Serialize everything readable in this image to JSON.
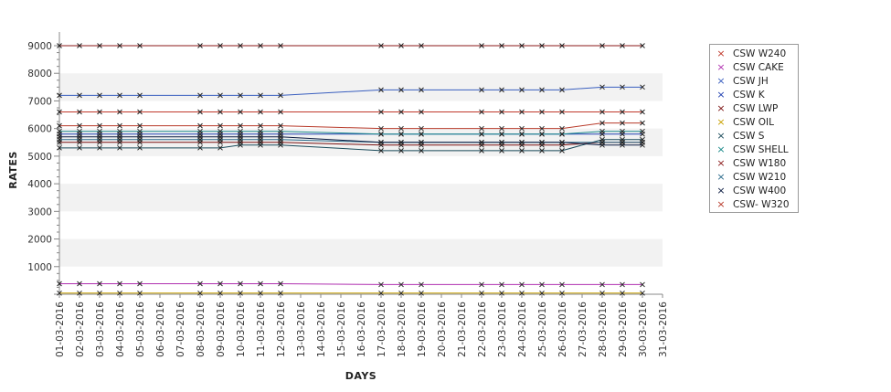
{
  "chart_data": {
    "type": "line",
    "xlabel": "DAYS",
    "ylabel": "RATES",
    "ylim": [
      0,
      9000
    ],
    "yticks": [
      1000,
      2000,
      3000,
      4000,
      5000,
      6000,
      7000,
      8000,
      9000
    ],
    "categories": [
      "01-03-2016",
      "02-03-2016",
      "03-03-2016",
      "04-03-2016",
      "05-03-2016",
      "06-03-2016",
      "07-03-2016",
      "08-03-2016",
      "09-03-2016",
      "10-03-2016",
      "11-03-2016",
      "12-03-2016",
      "13-03-2016",
      "14-03-2016",
      "15-03-2016",
      "16-03-2016",
      "17-03-2016",
      "18-03-2016",
      "19-03-2016",
      "20-03-2016",
      "21-03-2016",
      "22-03-2016",
      "23-03-2016",
      "24-03-2016",
      "25-03-2016",
      "26-03-2016",
      "27-03-2016",
      "28-03-2016",
      "29-03-2016",
      "30-03-2016",
      "31-03-2016"
    ],
    "marker_days": [
      1,
      2,
      3,
      4,
      5,
      8,
      9,
      10,
      11,
      12,
      17,
      18,
      19,
      22,
      23,
      24,
      25,
      26,
      28,
      29,
      30
    ],
    "grid": "alternating horizontal bands",
    "legend_position": "right",
    "series": [
      {
        "name": "CSW  W240",
        "color": "#c0392b",
        "values": [
          6600,
          6600,
          6600,
          6600,
          6600,
          null,
          null,
          6600,
          6600,
          6600,
          6600,
          6600,
          null,
          null,
          null,
          null,
          6600,
          6600,
          6600,
          null,
          null,
          6600,
          6600,
          6600,
          6600,
          6600,
          null,
          6600,
          6600,
          6600,
          null
        ]
      },
      {
        "name": "CSW CAKE",
        "color": "#b030b0",
        "values": [
          380,
          380,
          380,
          380,
          380,
          null,
          null,
          380,
          380,
          380,
          380,
          380,
          null,
          null,
          null,
          null,
          350,
          350,
          350,
          null,
          null,
          350,
          350,
          350,
          350,
          350,
          null,
          350,
          350,
          350,
          null
        ]
      },
      {
        "name": "CSW JH",
        "color": "#3a5fbf",
        "values": [
          7200,
          7200,
          7200,
          7200,
          7200,
          null,
          null,
          7200,
          7200,
          7200,
          7200,
          7200,
          null,
          null,
          null,
          null,
          7400,
          7400,
          7400,
          null,
          null,
          7400,
          7400,
          7400,
          7400,
          7400,
          null,
          7500,
          7500,
          7500,
          null
        ]
      },
      {
        "name": "CSW K",
        "color": "#1f3fb0",
        "values": [
          5800,
          5800,
          5800,
          5800,
          5800,
          null,
          null,
          5800,
          5800,
          5800,
          5800,
          5800,
          null,
          null,
          null,
          null,
          5800,
          5800,
          5800,
          null,
          null,
          5800,
          5800,
          5800,
          5800,
          5800,
          null,
          5800,
          5800,
          5800,
          null
        ]
      },
      {
        "name": "CSW LWP",
        "color": "#7a1010",
        "values": [
          5500,
          5500,
          5500,
          5500,
          5500,
          null,
          null,
          5500,
          5500,
          5500,
          5500,
          5500,
          null,
          null,
          null,
          null,
          5400,
          5400,
          5400,
          null,
          null,
          5400,
          5400,
          5400,
          5400,
          5400,
          null,
          5500,
          5500,
          5500,
          null
        ]
      },
      {
        "name": "CSW OIL",
        "color": "#c8a000",
        "values": [
          40,
          40,
          40,
          40,
          40,
          null,
          null,
          40,
          40,
          40,
          40,
          40,
          null,
          null,
          null,
          null,
          40,
          40,
          40,
          null,
          null,
          40,
          40,
          40,
          40,
          40,
          null,
          40,
          40,
          40,
          null
        ]
      },
      {
        "name": "CSW S",
        "color": "#1a4a5a",
        "values": [
          5300,
          5300,
          5300,
          5300,
          5300,
          null,
          null,
          5300,
          5300,
          5400,
          5400,
          5400,
          null,
          null,
          null,
          null,
          5200,
          5200,
          5200,
          null,
          null,
          5200,
          5200,
          5200,
          5200,
          5200,
          null,
          5600,
          5600,
          5600,
          null
        ]
      },
      {
        "name": "CSW SHELL",
        "color": "#1a8a8a",
        "values": [
          5900,
          5900,
          5900,
          5900,
          5900,
          null,
          null,
          5900,
          5900,
          5900,
          5900,
          5900,
          null,
          null,
          null,
          null,
          5800,
          5800,
          5800,
          null,
          null,
          5800,
          5800,
          5800,
          5800,
          5800,
          null,
          5900,
          5900,
          5900,
          null
        ]
      },
      {
        "name": "CSW W180",
        "color": "#8b1a1a",
        "values": [
          9000,
          9000,
          9000,
          9000,
          9000,
          null,
          null,
          9000,
          9000,
          9000,
          9000,
          9000,
          null,
          null,
          null,
          null,
          9000,
          9000,
          9000,
          null,
          null,
          9000,
          9000,
          9000,
          9000,
          9000,
          null,
          9000,
          9000,
          9000,
          null
        ]
      },
      {
        "name": "CSW W210",
        "color": "#2a6a8a",
        "values": [
          5600,
          5600,
          5600,
          5600,
          5600,
          null,
          null,
          5600,
          5600,
          5600,
          5600,
          5600,
          null,
          null,
          null,
          null,
          5500,
          5500,
          5500,
          null,
          null,
          5500,
          5500,
          5500,
          5500,
          5500,
          null,
          5500,
          5500,
          5500,
          null
        ]
      },
      {
        "name": "CSW W400",
        "color": "#0a1a40",
        "values": [
          5700,
          5700,
          5700,
          5700,
          5700,
          null,
          null,
          5700,
          5700,
          5700,
          5700,
          5700,
          null,
          null,
          null,
          null,
          5500,
          5500,
          5500,
          null,
          null,
          5500,
          5500,
          5500,
          5500,
          5500,
          null,
          5400,
          5400,
          5400,
          null
        ]
      },
      {
        "name": "CSW- W320",
        "color": "#b83a2a",
        "values": [
          6100,
          6100,
          6100,
          6100,
          6100,
          null,
          null,
          6100,
          6100,
          6100,
          6100,
          6100,
          null,
          null,
          null,
          null,
          6000,
          6000,
          6000,
          null,
          null,
          6000,
          6000,
          6000,
          6000,
          6000,
          null,
          6200,
          6200,
          6200,
          null
        ]
      }
    ]
  }
}
